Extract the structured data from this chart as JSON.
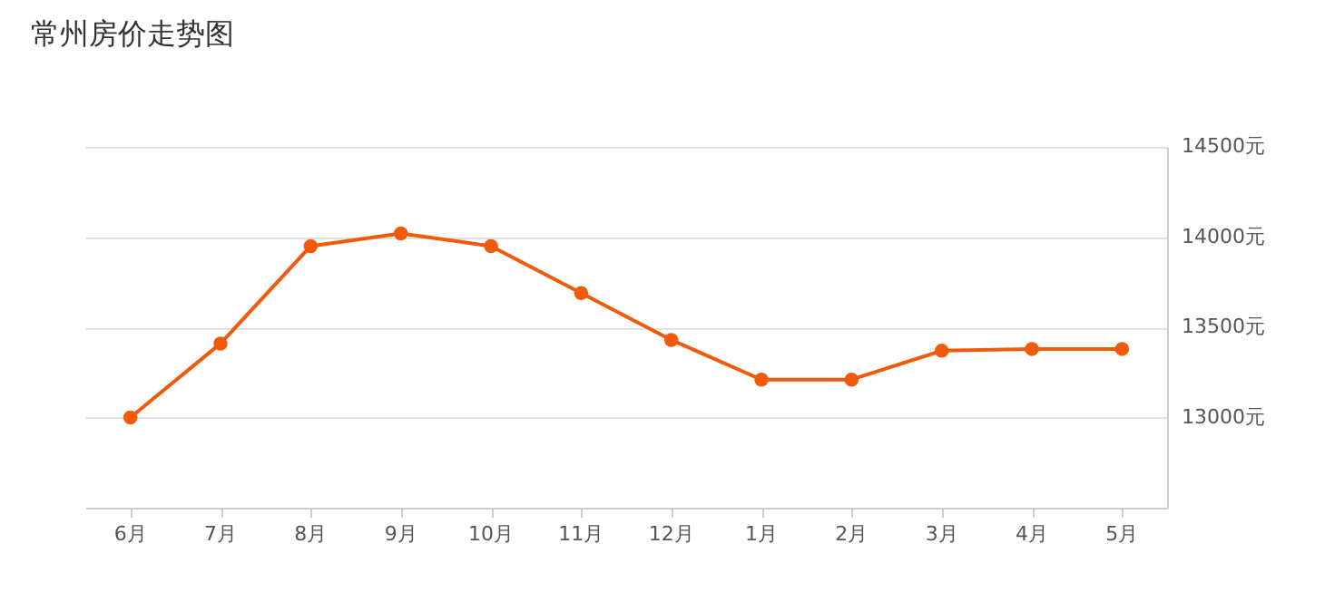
{
  "chart_data": {
    "type": "line",
    "title": "常州房价走势图",
    "categories": [
      "6月",
      "7月",
      "8月",
      "9月",
      "10月",
      "11月",
      "12月",
      "1月",
      "2月",
      "3月",
      "4月",
      "5月"
    ],
    "series": [
      {
        "color": "#f05a0a",
        "values": [
          13000,
          13410,
          13950,
          14020,
          13950,
          13690,
          13430,
          13210,
          13210,
          13370,
          13380,
          13380
        ]
      }
    ],
    "ylim": [
      12500,
      14500
    ],
    "yticks": [
      {
        "value": 13000,
        "label": "13000元"
      },
      {
        "value": 13500,
        "label": "13500元"
      },
      {
        "value": 14000,
        "label": "14000元"
      },
      {
        "value": 14500,
        "label": "14500元"
      }
    ],
    "grid": "y",
    "marker": "circle",
    "line_style": "solid"
  }
}
